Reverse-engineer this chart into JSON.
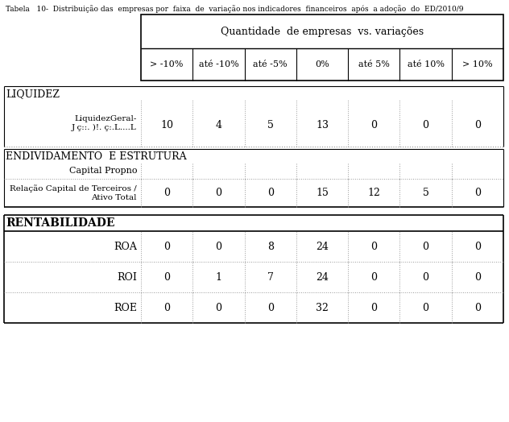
{
  "header_main": "Quantidade  de empresas  vs. variações",
  "col_headers": [
    "> -10%",
    "até -10%",
    "até -5%",
    "0%",
    "até 5%",
    "até 10%",
    "> 10%"
  ],
  "sections": [
    {
      "section_title": "LIQUIDEZ",
      "bold": false,
      "rows": [
        {
          "label": "LiquidezGeral-\nJ ç::. )!. ç:.L....L",
          "values": [
            "10",
            "4",
            "5",
            "13",
            "0",
            "0",
            "0"
          ]
        }
      ]
    },
    {
      "section_title": "ENDIVIDAMENTO  E ESTRUTURA",
      "bold": false,
      "rows": [
        {
          "label": "Capital Propno",
          "values": [
            "",
            "",
            "",
            "",
            "",
            "",
            ""
          ]
        },
        {
          "label": "Relação Capital de Terceiros /\nAtivo Total",
          "values": [
            "0",
            "0",
            "0",
            "15",
            "12",
            "5",
            "0"
          ]
        }
      ]
    },
    {
      "section_title": "RENTABILIDADE",
      "bold": true,
      "rows": [
        {
          "label": "ROA",
          "values": [
            "0",
            "0",
            "8",
            "24",
            "0",
            "0",
            "0"
          ]
        },
        {
          "label": "ROI",
          "values": [
            "0",
            "1",
            "7",
            "24",
            "0",
            "0",
            "0"
          ]
        },
        {
          "label": "ROE",
          "values": [
            "0",
            "0",
            "0",
            "32",
            "0",
            "0",
            "0"
          ]
        }
      ]
    }
  ],
  "bg_color": "#ffffff",
  "line_color": "#000000",
  "dot_color": "#999999",
  "text_color": "#000000",
  "title_text": "Tabela   10-  Distribuição das  empresas por  faixa  de  variação nos indicadores  financeiros  após  a adoção  do  ED/2010/9"
}
